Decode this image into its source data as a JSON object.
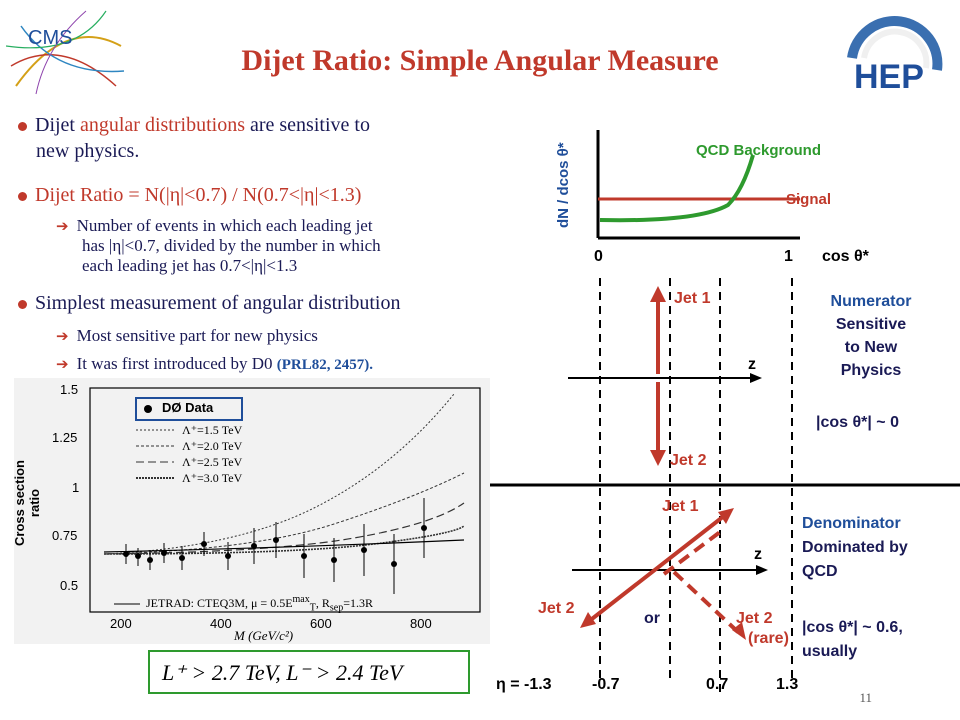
{
  "title": "Dijet Ratio: Simple Angular Measure",
  "logos": {
    "left": "CMS",
    "right": "HEP"
  },
  "bullets": [
    {
      "text_a": "Dijet ",
      "text_b": "angular distributions",
      "text_c": " are sensitive to",
      "text_d": "new physics."
    },
    {
      "text": "Dijet Ratio = N(|η|<0.7) / N(0.7<|η|<1.3)"
    },
    {
      "text": "Simplest measurement of angular distribution"
    }
  ],
  "subbullets": [
    {
      "line1": "Number of events in which each leading jet",
      "line2": "has |η|<0.7,  divided by the number in which",
      "line3": "each leading jet has 0.7<|η|<1.3"
    },
    {
      "text": "Most sensitive part for new physics"
    },
    {
      "text": "It was first introduced by D0 ",
      "ref": "(PRL82, 2457)."
    }
  ],
  "top_plot": {
    "ylabel": "dN / dcos θ*",
    "xlabel": "cos θ*",
    "tick0": "0",
    "tick1": "1",
    "qcd_label": "QCD Background",
    "signal_label": "Signal"
  },
  "diagram": {
    "jet1_top": "Jet 1",
    "jet2_top": "Jet 2",
    "z_top": "z",
    "numerator": [
      "Numerator",
      "Sensitive",
      "to New",
      "Physics"
    ],
    "numerator_cos": "|cos θ*| ~ 0",
    "jet1_bottom": "Jet 1",
    "jet2_bottom_left": "Jet 2",
    "jet2_bottom_right": "Jet 2",
    "rare": "(rare)",
    "or": "or",
    "z_bottom": "z",
    "denominator": [
      "Denominator",
      "Dominated by",
      "QCD"
    ],
    "denominator_cos": [
      "|cos θ*| ~ 0.6,",
      "usually"
    ],
    "eta_labels": [
      "η = -1.3",
      "-0.7",
      "0.7",
      "1.3"
    ]
  },
  "d0_plot": {
    "legend": [
      "DØ Data",
      "Λ⁺=1.5 TeV",
      "Λ⁺=2.0 TeV",
      "Λ⁺=2.5 TeV",
      "Λ⁺=3.0 TeV"
    ],
    "yticks": [
      "1.5",
      "1.25",
      "1",
      "0.75",
      "0.5"
    ],
    "xticks": [
      "200",
      "400",
      "600",
      "800"
    ],
    "ylabel": "Cross section ratio",
    "xlabel": "M (GeV/c²)",
    "note": "JETRAD: CTEQ3M, μ = 0.5E",
    "note_sup": "max",
    "note_sub": "T",
    "note_tail": ", R",
    "note_rsub": "sep",
    "note_end": "=1.3R",
    "limits": "L⁺ > 2.7 TeV,   L⁻ > 2.4 TeV"
  },
  "slide_number": "11",
  "colors": {
    "title": "#c0392b",
    "text": "#1a1a55",
    "accent": "#c0392b",
    "blue": "#1f4e9a",
    "green": "#2e9a2e"
  }
}
